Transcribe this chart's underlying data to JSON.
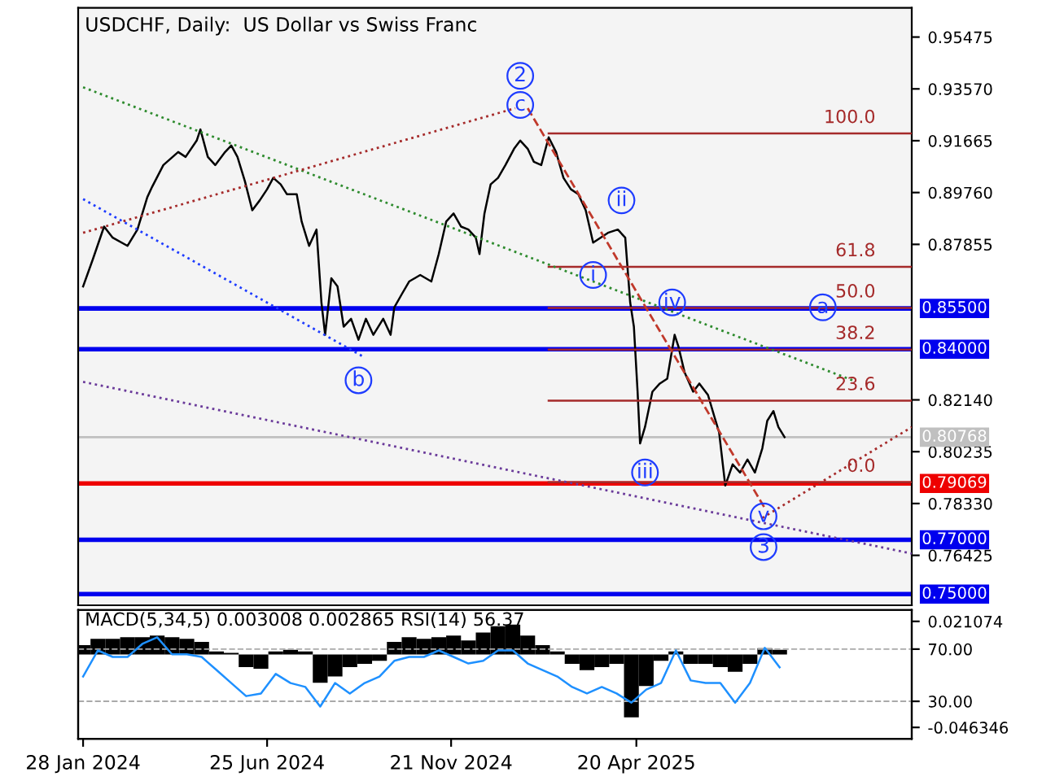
{
  "chart_data": [
    {
      "type": "line",
      "title": "USDCHF, Daily:  US Dollar vs Swiss Franc",
      "xlim": [
        "2024-01-24",
        "2025-11-29"
      ],
      "ylim": [
        0.7459,
        0.9655
      ],
      "yticks": [
        {
          "value": 0.95475,
          "label": "0.95475"
        },
        {
          "value": 0.9357,
          "label": "0.93570"
        },
        {
          "value": 0.91665,
          "label": "0.91665"
        },
        {
          "value": 0.8976,
          "label": "0.89760"
        },
        {
          "value": 0.87855,
          "label": "0.87855"
        },
        {
          "value": 0.8214,
          "label": "0.82140"
        },
        {
          "value": 0.80235,
          "label": "0.80235"
        },
        {
          "value": 0.7833,
          "label": "0.78330"
        },
        {
          "value": 0.76425,
          "label": "0.76425"
        }
      ],
      "tick_labels": "y",
      "grid": false,
      "legend": false,
      "series": [
        {
          "color": "#000000",
          "line_style": "solid",
          "x": [
            "2024-01-28",
            "2024-02-05",
            "2024-02-14",
            "2024-02-21",
            "2024-03-04",
            "2024-03-12",
            "2024-03-20",
            "2024-03-24",
            "2024-04-02",
            "2024-04-14",
            "2024-04-20",
            "2024-04-29",
            "2024-05-02",
            "2024-05-08",
            "2024-05-14",
            "2024-05-22",
            "2024-05-27",
            "2024-06-01",
            "2024-06-07",
            "2024-06-13",
            "2024-06-19",
            "2024-06-25",
            "2024-06-30",
            "2024-07-06",
            "2024-07-11",
            "2024-07-19",
            "2024-07-23",
            "2024-07-29",
            "2024-08-04",
            "2024-08-08",
            "2024-08-11",
            "2024-08-16",
            "2024-08-21",
            "2024-08-26",
            "2024-09-01",
            "2024-09-07",
            "2024-09-13",
            "2024-09-19",
            "2024-09-27",
            "2024-10-03",
            "2024-10-06",
            "2024-10-12",
            "2024-10-18",
            "2024-10-27",
            "2024-11-05",
            "2024-11-11",
            "2024-11-17",
            "2024-11-23",
            "2024-11-29",
            "2024-12-05",
            "2024-12-11",
            "2024-12-14",
            "2024-12-18",
            "2024-12-23",
            "2024-12-29",
            "2025-01-04",
            "2025-01-11",
            "2025-01-16",
            "2025-01-22",
            "2025-01-27",
            "2025-02-02",
            "2025-02-08",
            "2025-02-14",
            "2025-02-20",
            "2025-02-26",
            "2025-03-04",
            "2025-03-10",
            "2025-03-16",
            "2025-03-22",
            "2025-03-28",
            "2025-04-05",
            "2025-04-11",
            "2025-04-15",
            "2025-04-18",
            "2025-04-21",
            "2025-04-23",
            "2025-04-27",
            "2025-05-03",
            "2025-05-09",
            "2025-05-15",
            "2025-05-21",
            "2025-05-24",
            "2025-05-29",
            "2025-06-05",
            "2025-06-10",
            "2025-06-17",
            "2025-06-22",
            "2025-06-26",
            "2025-07-01",
            "2025-07-07",
            "2025-07-13",
            "2025-07-19",
            "2025-07-25",
            "2025-07-31",
            "2025-08-04",
            "2025-08-09",
            "2025-08-13",
            "2025-08-18"
          ],
          "values": [
            0.8631,
            0.8732,
            0.8851,
            0.881,
            0.878,
            0.884,
            0.8959,
            0.8998,
            0.9077,
            0.9125,
            0.9107,
            0.9167,
            0.9208,
            0.9107,
            0.9077,
            0.9125,
            0.9149,
            0.9107,
            0.9018,
            0.8911,
            0.8947,
            0.8988,
            0.903,
            0.9006,
            0.897,
            0.897,
            0.8869,
            0.878,
            0.884,
            0.8572,
            0.8453,
            0.8661,
            0.8631,
            0.8483,
            0.8512,
            0.8435,
            0.8512,
            0.8453,
            0.8512,
            0.8453,
            0.8554,
            0.8602,
            0.8649,
            0.8673,
            0.8649,
            0.875,
            0.8869,
            0.8899,
            0.8851,
            0.884,
            0.881,
            0.875,
            0.8899,
            0.9006,
            0.903,
            0.9077,
            0.9137,
            0.9167,
            0.9137,
            0.9089,
            0.9077,
            0.9179,
            0.9125,
            0.903,
            0.8988,
            0.897,
            0.8911,
            0.8792,
            0.881,
            0.8828,
            0.884,
            0.881,
            0.8572,
            0.8483,
            0.8244,
            0.8054,
            0.8114,
            0.8244,
            0.8274,
            0.8292,
            0.8453,
            0.8411,
            0.8316,
            0.8244,
            0.8274,
            0.8232,
            0.8155,
            0.8095,
            0.7899,
            0.7977,
            0.7947,
            0.7995,
            0.7947,
            0.8036,
            0.8137,
            0.8173,
            0.8114,
            0.8077
          ]
        },
        {
          "name": "100.0",
          "color": "#a52a2a",
          "line_style": "solid",
          "x": [
            "2025-02-08",
            "2025-11-29"
          ],
          "values": [
            0.9193,
            0.9193
          ]
        },
        {
          "name": "61.8",
          "color": "#a52a2a",
          "line_style": "solid",
          "x": [
            "2025-02-08",
            "2025-11-29"
          ],
          "values": [
            0.8703,
            0.8703
          ]
        },
        {
          "name": "50.0",
          "color": "#a52a2a",
          "line_style": "solid",
          "x": [
            "2025-02-08",
            "2025-11-29"
          ],
          "values": [
            0.8552,
            0.8552
          ]
        },
        {
          "name": "38.2",
          "color": "#a52a2a",
          "line_style": "solid",
          "x": [
            "2025-02-08",
            "2025-11-29"
          ],
          "values": [
            0.8399,
            0.8399
          ]
        },
        {
          "name": "23.6",
          "color": "#a52a2a",
          "line_style": "solid",
          "x": [
            "2025-02-08",
            "2025-11-29"
          ],
          "values": [
            0.8211,
            0.8211
          ]
        },
        {
          "name": "0.0",
          "color": "#a52a2a",
          "line_style": "solid",
          "x": [
            "2025-02-08",
            "2025-11-29"
          ],
          "values": [
            0.7911,
            0.7911
          ]
        },
        {
          "color": "#2e8b2e",
          "line_style": "dotted",
          "x": [
            "2024-01-28",
            "2025-10-12"
          ],
          "values": [
            0.9363,
            0.8286
          ]
        },
        {
          "color": "#1e3cff",
          "line_style": "dotted",
          "x": [
            "2024-01-28",
            "2024-09-10"
          ],
          "values": [
            0.8952,
            0.8375
          ]
        },
        {
          "color": "#a52a2a",
          "line_style": "dotted",
          "x": [
            "2024-01-28",
            "2025-01-12"
          ],
          "values": [
            0.8828,
            0.9286
          ]
        },
        {
          "color": "#6a3a9a",
          "line_style": "dotted",
          "x": [
            "2024-01-28",
            "2025-11-29"
          ],
          "values": [
            0.828,
            0.7649
          ]
        },
        {
          "color": "#a52a2a",
          "line_style": "dotted",
          "x": [
            "2025-07-31",
            "2025-11-29"
          ],
          "values": [
            0.778,
            0.8114
          ]
        },
        {
          "color": "#c0392b",
          "line_style": "dashed",
          "x": [
            "2025-01-22",
            "2025-08-02"
          ],
          "values": [
            0.9286,
            0.7816
          ]
        }
      ],
      "ref_lines": [
        {
          "axis": "y",
          "value": 0.855,
          "label": "0.85500",
          "color": "#0000ee"
        },
        {
          "axis": "y",
          "value": 0.84,
          "label": "0.84000",
          "color": "#0000ee"
        },
        {
          "axis": "y",
          "value": 0.80768,
          "label": "0.80768",
          "color": "#c0c0c0"
        },
        {
          "axis": "y",
          "value": 0.79069,
          "label": "0.79069",
          "color": "#ee0000"
        },
        {
          "axis": "y",
          "value": 0.77,
          "label": "0.77000",
          "color": "#0000ee"
        },
        {
          "axis": "y",
          "value": 0.75,
          "label": "0.75000",
          "color": "#0000ee"
        }
      ],
      "annotations": [
        {
          "text": "2",
          "x": "2025-01-16",
          "y": 0.9405
        },
        {
          "text": "c",
          "x": "2025-01-16",
          "y": 0.9298
        },
        {
          "text": "b",
          "x": "2024-09-07",
          "y": 0.8286
        },
        {
          "text": "i",
          "x": "2025-03-16",
          "y": 0.8673
        },
        {
          "text": "ii",
          "x": "2025-04-08",
          "y": 0.8947
        },
        {
          "text": "iii",
          "x": "2025-04-27",
          "y": 0.7947
        },
        {
          "text": "iv",
          "x": "2025-05-19",
          "y": 0.8572
        },
        {
          "text": "v",
          "x": "2025-08-01",
          "y": 0.7786
        },
        {
          "text": "3",
          "x": "2025-08-01",
          "y": 0.7673
        },
        {
          "text": "a",
          "x": "2025-09-18",
          "y": 0.8554
        }
      ]
    },
    {
      "type": "line",
      "title": "MACD(5,34,5) 0.003008 0.002865 RSI(14) 56.37",
      "xlim": [
        "2024-01-24",
        "2025-11-29"
      ],
      "xticks": [
        {
          "value": "2024-01-28",
          "label": "28 Jan 2024"
        },
        {
          "value": "2024-06-25",
          "label": "25 Jun 2024"
        },
        {
          "value": "2024-11-21",
          "label": "21 Nov 2024"
        },
        {
          "value": "2025-04-20",
          "label": "20 Apr 2025"
        }
      ],
      "ylim": [
        1.25,
        100
      ],
      "yticks": [
        {
          "value": 70,
          "label": "70.00"
        },
        {
          "value": 30,
          "label": "30.00"
        }
      ],
      "y2lim": [
        -0.05361,
        0.02833
      ],
      "y2ticks": [
        0.021074,
        -0.046346
      ],
      "grid": "y",
      "legend": false,
      "x": [
        "2024-01-28",
        "2024-02-09",
        "2024-02-21",
        "2024-03-04",
        "2024-03-16",
        "2024-03-28",
        "2024-04-09",
        "2024-04-21",
        "2024-05-03",
        "2024-05-15",
        "2024-05-27",
        "2024-06-08",
        "2024-06-20",
        "2024-07-02",
        "2024-07-14",
        "2024-07-26",
        "2024-08-07",
        "2024-08-19",
        "2024-08-31",
        "2024-09-12",
        "2024-09-24",
        "2024-10-06",
        "2024-10-18",
        "2024-10-30",
        "2024-11-11",
        "2024-11-23",
        "2024-12-05",
        "2024-12-17",
        "2024-12-29",
        "2025-01-10",
        "2025-01-22",
        "2025-02-03",
        "2025-02-15",
        "2025-02-27",
        "2025-03-11",
        "2025-03-23",
        "2025-04-04",
        "2025-04-16",
        "2025-04-28",
        "2025-05-10",
        "2025-05-22",
        "2025-06-03",
        "2025-06-15",
        "2025-06-27",
        "2025-07-09",
        "2025-07-21",
        "2025-08-02",
        "2025-08-14"
      ],
      "series": [
        {
          "type": "bar",
          "axis": "y2",
          "color": "#000000",
          "values": [
            0.006,
            0.01,
            0.01,
            0.011,
            0.011,
            0.012,
            0.011,
            0.01,
            0.008,
            0.002,
            0.001,
            -0.008,
            -0.009,
            0.002,
            0.003,
            0.002,
            -0.018,
            -0.014,
            -0.008,
            -0.006,
            -0.004,
            0.008,
            0.011,
            0.01,
            0.011,
            0.012,
            0.009,
            0.014,
            0.018,
            0.019,
            0.012,
            0.006,
            0.002,
            -0.006,
            -0.01,
            -0.008,
            -0.006,
            -0.04,
            -0.02,
            -0.004,
            0.002,
            -0.006,
            -0.006,
            -0.008,
            -0.011,
            -0.006,
            0.004,
            0.003
          ]
        },
        {
          "type": "line",
          "color": "#1e90ff",
          "line_style": "solid",
          "values": [
            49,
            69,
            64,
            64,
            74,
            79,
            66,
            66,
            64,
            54,
            44,
            34,
            36,
            51,
            44,
            41,
            26,
            44,
            36,
            44,
            49,
            61,
            64,
            64,
            69,
            64,
            59,
            61,
            69,
            69,
            59,
            54,
            49,
            41,
            36,
            41,
            36,
            29,
            39,
            44,
            69,
            46,
            44,
            44,
            29,
            44,
            71,
            56
          ]
        }
      ]
    }
  ]
}
